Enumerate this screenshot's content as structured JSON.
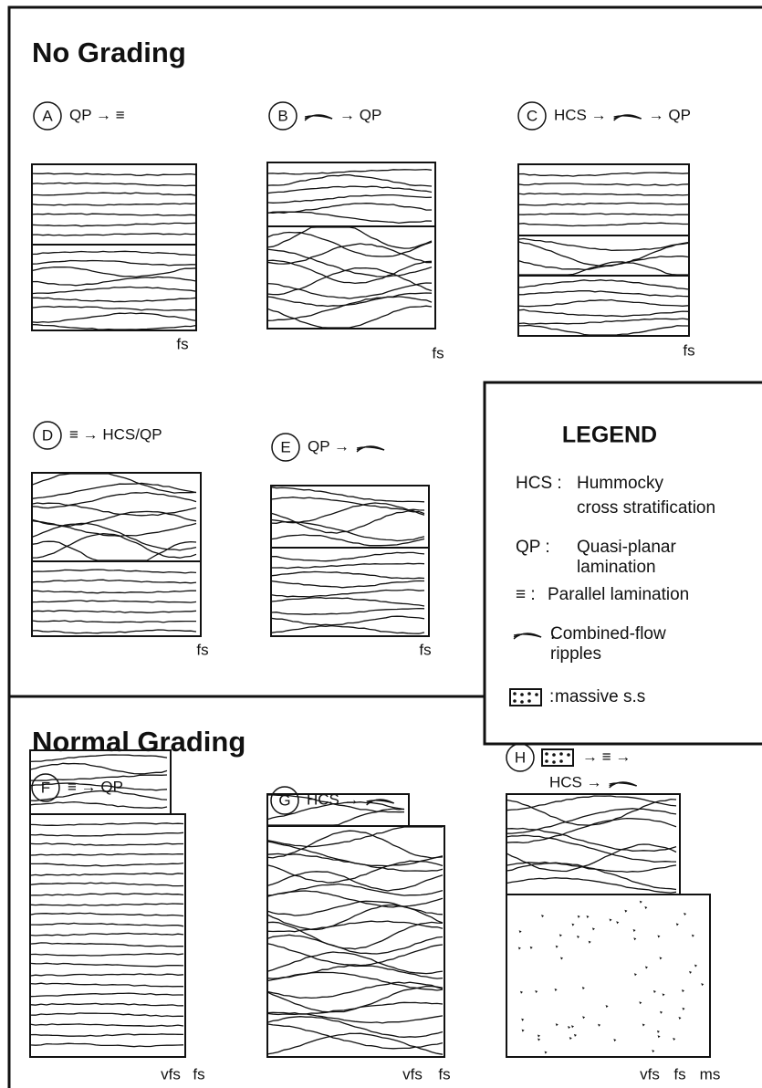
{
  "sections": [
    {
      "title": "No Grading",
      "panels": [
        {
          "letter": "A",
          "caption": [
            "QP → ≡"
          ],
          "grain_labels": [
            "fs"
          ]
        },
        {
          "letter": "B",
          "caption": [
            "→ QP"
          ],
          "grain_labels": [
            "fs"
          ]
        },
        {
          "letter": "C",
          "caption": [
            "HCS →",
            "→ QP"
          ],
          "grain_labels": [
            "fs"
          ]
        },
        {
          "letter": "D",
          "caption": [
            "≡ → HCS/QP"
          ],
          "grain_labels": [
            "fs"
          ]
        },
        {
          "letter": "E",
          "caption": [
            "QP →"
          ],
          "grain_labels": [
            "fs"
          ]
        }
      ]
    },
    {
      "title": "Normal Grading",
      "panels": [
        {
          "letter": "F",
          "caption": [
            "≡ → QP"
          ],
          "grain_labels": [
            "vfs",
            "fs"
          ]
        },
        {
          "letter": "G",
          "caption": [
            "HCS →"
          ],
          "grain_labels": [
            "vfs",
            "fs"
          ]
        },
        {
          "letter": "H",
          "caption": [
            "→ ≡ →",
            "HCS →"
          ],
          "grain_labels": [
            "vfs",
            "fs",
            "ms"
          ]
        }
      ]
    }
  ],
  "legend": {
    "title": "LEGEND",
    "entries": [
      {
        "symbol": "HCS :",
        "lines": [
          "Hummocky",
          "cross stratification"
        ]
      },
      {
        "symbol": "QP :",
        "lines": [
          "Quasi-planar",
          "lamination"
        ]
      },
      {
        "symbol": "≡ :",
        "lines": [
          "Parallel lamination"
        ]
      },
      {
        "symbol": ":",
        "lines": [
          "Combined-flow",
          "ripples"
        ]
      },
      {
        "symbol": ":",
        "lines": [
          "massive s.s"
        ]
      }
    ]
  }
}
